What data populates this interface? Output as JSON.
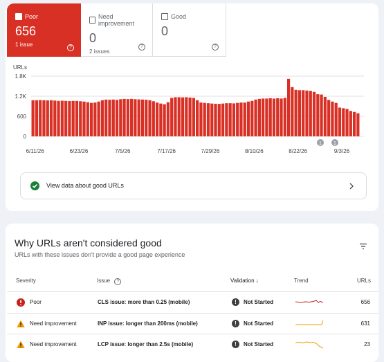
{
  "summary_tiles": [
    {
      "label": "Poor",
      "count": 656,
      "note": "1 issue"
    },
    {
      "label": "Need improvement",
      "count": 0,
      "note": "2 issues"
    },
    {
      "label": "Good",
      "count": 0
    }
  ],
  "chart_data": {
    "type": "bar",
    "y_label": "URLs",
    "color": "#d93025",
    "categories": [
      "6/11/26",
      null,
      null,
      null,
      null,
      null,
      null,
      null,
      null,
      null,
      null,
      null,
      "6/23/26",
      null,
      null,
      null,
      null,
      null,
      null,
      null,
      null,
      null,
      null,
      null,
      "7/5/26",
      null,
      null,
      null,
      null,
      null,
      null,
      null,
      null,
      null,
      null,
      null,
      "7/17/26",
      null,
      null,
      null,
      null,
      null,
      null,
      null,
      null,
      null,
      null,
      null,
      "7/29/26",
      null,
      null,
      null,
      null,
      null,
      null,
      null,
      null,
      null,
      null,
      null,
      "8/10/26",
      null,
      null,
      null,
      null,
      null,
      null,
      null,
      null,
      null,
      null,
      null,
      "8/22/26",
      null,
      null,
      null,
      null,
      null,
      null,
      null,
      null,
      null,
      null,
      null,
      "9/3/26",
      null,
      null,
      null,
      null,
      null
    ],
    "values": [
      1080,
      1080,
      1085,
      1080,
      1075,
      1080,
      1070,
      1060,
      1065,
      1060,
      1055,
      1060,
      1060,
      1050,
      1040,
      1020,
      1000,
      1010,
      1040,
      1080,
      1100,
      1095,
      1100,
      1090,
      1110,
      1120,
      1115,
      1120,
      1110,
      1105,
      1100,
      1095,
      1080,
      1050,
      1010,
      980,
      960,
      1020,
      1150,
      1170,
      1170,
      1165,
      1170,
      1160,
      1150,
      1080,
      1010,
      1000,
      990,
      980,
      975,
      970,
      980,
      990,
      990,
      985,
      1000,
      1010,
      1010,
      1040,
      1060,
      1100,
      1120,
      1130,
      1130,
      1140,
      1130,
      1140,
      1130,
      1150,
      1720,
      1470,
      1390,
      1380,
      1380,
      1370,
      1360,
      1330,
      1260,
      1250,
      1180,
      1090,
      1040,
      1000,
      860,
      840,
      820,
      760,
      730,
      690
    ],
    "ylim": [
      0,
      1800
    ],
    "yticks": [
      0,
      600,
      {
        "value": 1200,
        "label": "1.2K"
      },
      {
        "value": 1800,
        "label": "1.8K"
      }
    ],
    "grid": true,
    "annotations": [
      "1",
      "1"
    ]
  },
  "good_urls_link": "View data about good URLs",
  "issues_table": {
    "title": "Why URLs aren't considered good",
    "subtitle": "URLs with these issues don't provide a good page experience",
    "columns": [
      "Severity",
      "Issue",
      "Validation",
      "Trend",
      "URLs"
    ],
    "rows": [
      [
        "Poor",
        "CLS issue: more than 0.25 (mobile)",
        "Not Started",
        656
      ],
      [
        "Need improvement",
        "INP issue: longer than 200ms (mobile)",
        "Not Started",
        631
      ],
      [
        "Need improvement",
        "LCP issue: longer than 2.5s (mobile)",
        "Not Started",
        23
      ]
    ]
  }
}
